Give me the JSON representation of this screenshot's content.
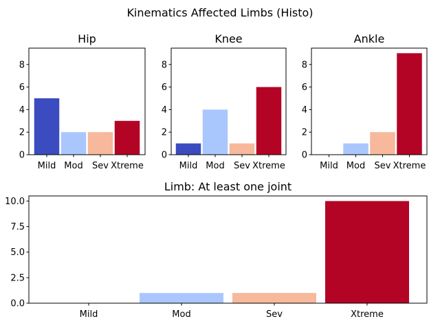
{
  "figure_title": "Kinematics Affected Limbs (Histo)",
  "colors": {
    "Mild": "#3b4cc0",
    "Mod": "#aac7fd",
    "Sev": "#f7b89c",
    "Xtreme": "#b40426"
  },
  "chart_data": [
    {
      "type": "bar",
      "title": "Hip",
      "categories": [
        "Mild",
        "Mod",
        "Sev",
        "Xtreme"
      ],
      "values": [
        5,
        2,
        2,
        3
      ],
      "ylim": [
        0,
        9.45
      ],
      "yticks": [
        0,
        2,
        4,
        6,
        8
      ],
      "ytick_labels": [
        "0",
        "2",
        "4",
        "6",
        "8"
      ],
      "grid": false
    },
    {
      "type": "bar",
      "title": "Knee",
      "categories": [
        "Mild",
        "Mod",
        "Sev",
        "Xtreme"
      ],
      "values": [
        1,
        4,
        1,
        6
      ],
      "ylim": [
        0,
        9.45
      ],
      "yticks": [
        0,
        2,
        4,
        6,
        8
      ],
      "ytick_labels": [
        "0",
        "2",
        "4",
        "6",
        "8"
      ],
      "grid": false
    },
    {
      "type": "bar",
      "title": "Ankle",
      "categories": [
        "Mild",
        "Mod",
        "Sev",
        "Xtreme"
      ],
      "values": [
        0,
        1,
        2,
        9
      ],
      "ylim": [
        0,
        9.45
      ],
      "yticks": [
        0,
        2,
        4,
        6,
        8
      ],
      "ytick_labels": [
        "0",
        "2",
        "4",
        "6",
        "8"
      ],
      "grid": false
    },
    {
      "type": "bar",
      "title": "Limb: At least one joint",
      "categories": [
        "Mild",
        "Mod",
        "Sev",
        "Xtreme"
      ],
      "values": [
        0,
        1,
        1,
        10
      ],
      "ylim": [
        0,
        10.5
      ],
      "yticks": [
        0,
        2.5,
        5,
        7.5,
        10
      ],
      "ytick_labels": [
        "0.0",
        "2.5",
        "5.0",
        "7.5",
        "10.0"
      ],
      "grid": false
    }
  ]
}
